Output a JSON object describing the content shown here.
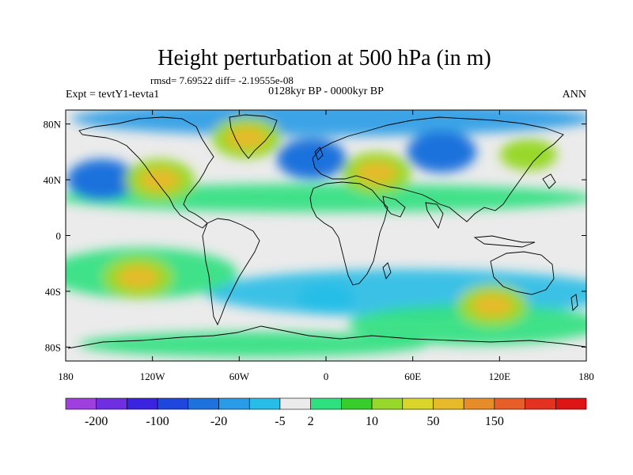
{
  "title": "Height perturbation at 500 hPa (in m)",
  "stats": "rmsd= 7.69522 diff= -2.19555e-08",
  "experiment": "Expt = tevtY1-tevta1",
  "period": "0128kyr BP - 0000kyr BP",
  "season": "ANN",
  "chart_data": {
    "type": "heatmap",
    "projection": "cylindrical-equidistant",
    "xlim": [
      -180,
      180
    ],
    "ylim": [
      -90,
      90
    ],
    "x_ticks": [
      {
        "value": -180,
        "label": "180"
      },
      {
        "value": -120,
        "label": "120W"
      },
      {
        "value": -60,
        "label": "60W"
      },
      {
        "value": 0,
        "label": "0"
      },
      {
        "value": 60,
        "label": "60E"
      },
      {
        "value": 120,
        "label": "120E"
      },
      {
        "value": 180,
        "label": "180"
      }
    ],
    "y_ticks": [
      {
        "value": 80,
        "label": "80N"
      },
      {
        "value": 40,
        "label": "40N"
      },
      {
        "value": 0,
        "label": "0"
      },
      {
        "value": -40,
        "label": "40S"
      },
      {
        "value": -80,
        "label": "80S"
      }
    ],
    "colorbar": {
      "labels": [
        "-200",
        "-100",
        "-20",
        "-5",
        "2",
        "10",
        "50",
        "150"
      ],
      "colors": [
        "#9f3fe0",
        "#6f2fe0",
        "#3b24e0",
        "#1f47dc",
        "#1f72dc",
        "#2a9be6",
        "#27bde6",
        "#ebebeb",
        "#2fe07e",
        "#38cc2d",
        "#98d82a",
        "#d9d52b",
        "#e6ba2b",
        "#e68c28",
        "#e65f28",
        "#e3321f",
        "#dd1414"
      ]
    },
    "features": [
      {
        "name": "north-pacific-low",
        "lon": -155,
        "lat": 40,
        "level": "-20"
      },
      {
        "name": "north-pacific-ridge",
        "lon": -115,
        "lat": 40,
        "level": "50"
      },
      {
        "name": "greenland-high",
        "lon": -55,
        "lat": 70,
        "level": "50"
      },
      {
        "name": "north-atlantic-low",
        "lon": -10,
        "lat": 55,
        "level": "-20"
      },
      {
        "name": "eurasia-high",
        "lon": 35,
        "lat": 45,
        "level": "50"
      },
      {
        "name": "siberia-low",
        "lon": 80,
        "lat": 60,
        "level": "-20"
      },
      {
        "name": "east-asia-high",
        "lon": 140,
        "lat": 58,
        "level": "10"
      },
      {
        "name": "south-pacific-high",
        "lon": -130,
        "lat": -30,
        "level": "50"
      },
      {
        "name": "south-atlantic-low",
        "lon": 0,
        "lat": -45,
        "level": "-5"
      },
      {
        "name": "southern-indian-high",
        "lon": 115,
        "lat": -50,
        "level": "50"
      }
    ]
  }
}
